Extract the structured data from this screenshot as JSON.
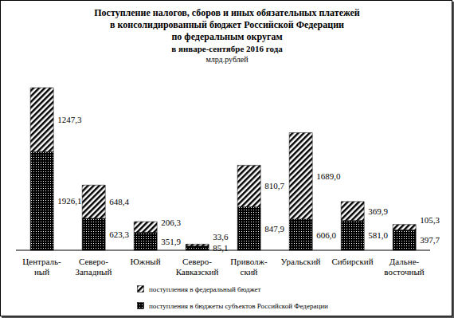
{
  "chart_data": {
    "type": "bar",
    "stacked": true,
    "data_labels": true,
    "tick_labels": "x",
    "title": [
      "Поступление налогов, сборов и иных обязательных платежей",
      "в консолидированный бюджет Российской Федерации",
      "по федеральным округам",
      "в январе-сентябре 2016 года"
    ],
    "subtitle": "млрд.рублей",
    "categories": [
      "Централь-\nный",
      "Северо-\nЗападный",
      "Южный",
      "Северо-\nКавказский",
      "Приволж-\nский",
      "Уральский",
      "Сибирский",
      "Дальне-\nвосточный"
    ],
    "series": [
      {
        "name": "поступления в федеральный бюджет",
        "color": "#000000",
        "values": [
          1247.3,
          648.4,
          206.3,
          33.6,
          810.7,
          1689.0,
          369.9,
          105.3
        ],
        "value_labels": [
          "1247,3",
          "648,4",
          "206,3",
          "33,6",
          "810,7",
          "1689,0",
          "369,9",
          "105,3"
        ]
      },
      {
        "name": "поступления в бюджеты субъектов Российской Федерации",
        "color": "#000000",
        "values": [
          1926.1,
          623.3,
          351.9,
          85.1,
          847.9,
          606.0,
          581.0,
          397.7
        ],
        "value_labels": [
          "1926,1",
          "623,3",
          "351,9",
          "85,1",
          "847,9",
          "606,0",
          "581,0",
          "397,7"
        ]
      }
    ]
  }
}
